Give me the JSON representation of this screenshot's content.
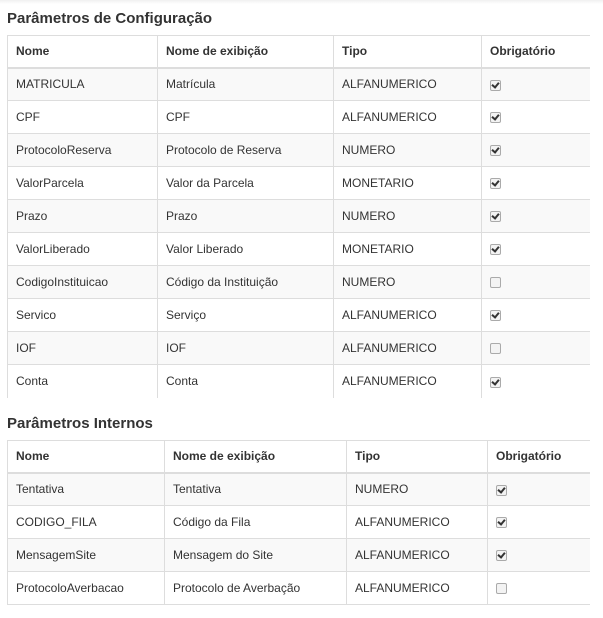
{
  "config": {
    "title": "Parâmetros de Configuração",
    "headers": [
      "Nome",
      "Nome de exibição",
      "Tipo",
      "Obrigatório"
    ],
    "rows": [
      {
        "nome": "MATRICULA",
        "exibicao": "Matrícula",
        "tipo": "ALFANUMERICO",
        "obrigatorio": true
      },
      {
        "nome": "CPF",
        "exibicao": "CPF",
        "tipo": "ALFANUMERICO",
        "obrigatorio": true
      },
      {
        "nome": "ProtocoloReserva",
        "exibicao": "Protocolo de Reserva",
        "tipo": "NUMERO",
        "obrigatorio": true
      },
      {
        "nome": "ValorParcela",
        "exibicao": "Valor da Parcela",
        "tipo": "MONETARIO",
        "obrigatorio": true
      },
      {
        "nome": "Prazo",
        "exibicao": "Prazo",
        "tipo": "NUMERO",
        "obrigatorio": true
      },
      {
        "nome": "ValorLiberado",
        "exibicao": "Valor Liberado",
        "tipo": "MONETARIO",
        "obrigatorio": true
      },
      {
        "nome": "CodigoInstituicao",
        "exibicao": "Código da Instituição",
        "tipo": "NUMERO",
        "obrigatorio": false
      },
      {
        "nome": "Servico",
        "exibicao": "Serviço",
        "tipo": "ALFANUMERICO",
        "obrigatorio": true
      },
      {
        "nome": "IOF",
        "exibicao": "IOF",
        "tipo": "ALFANUMERICO",
        "obrigatorio": false
      },
      {
        "nome": "Conta",
        "exibicao": "Conta",
        "tipo": "ALFANUMERICO",
        "obrigatorio": true
      }
    ]
  },
  "internos": {
    "title": "Parâmetros Internos",
    "headers": [
      "Nome",
      "Nome de exibição",
      "Tipo",
      "Obrigatório"
    ],
    "rows": [
      {
        "nome": "Tentativa",
        "exibicao": "Tentativa",
        "tipo": "NUMERO",
        "obrigatorio": true
      },
      {
        "nome": "CODIGO_FILA",
        "exibicao": "Código da Fila",
        "tipo": "ALFANUMERICO",
        "obrigatorio": true
      },
      {
        "nome": "MensagemSite",
        "exibicao": "Mensagem do Site",
        "tipo": "ALFANUMERICO",
        "obrigatorio": true
      },
      {
        "nome": "ProtocoloAverbacao",
        "exibicao": "Protocolo de Averbação",
        "tipo": "ALFANUMERICO",
        "obrigatorio": false
      }
    ]
  }
}
